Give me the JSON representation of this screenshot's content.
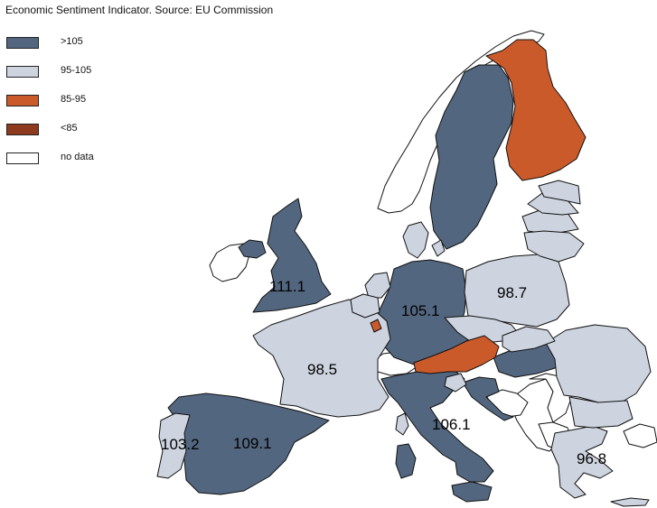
{
  "title": "Economic Sentiment Indicator. Source: EU Commission",
  "legend": [
    {
      "label": ">105",
      "color": "#52667f"
    },
    {
      "label": "95-105",
      "color": "#cdd3df"
    },
    {
      "label": "85-95",
      "color": "#cb5a2b"
    },
    {
      "label": "<85",
      "color": "#8d3a1e"
    },
    {
      "label": "no data",
      "color": "#ffffff"
    }
  ],
  "values": {
    "uk": "111.1",
    "germany": "105.1",
    "poland": "98.7",
    "france": "98.5",
    "italy": "106.1",
    "portugal": "103.2",
    "spain": "109.1",
    "greece": "96.8"
  }
}
